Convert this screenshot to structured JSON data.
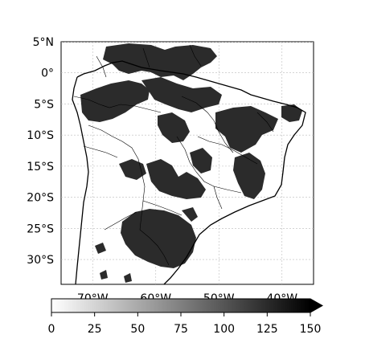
{
  "map": {
    "lat_labels": [
      "5°N",
      "0°",
      "5°S",
      "10°S",
      "15°S",
      "20°S",
      "25°S",
      "30°S"
    ],
    "lon_labels": [
      "70°W",
      "60°W",
      "50°W",
      "40°W"
    ],
    "lat_range": [
      -34,
      5
    ],
    "lon_range": [
      -75,
      -35
    ],
    "gridlines": true
  },
  "colorbar": {
    "ticks": [
      "0",
      "25",
      "50",
      "75",
      "100",
      "125",
      "150"
    ],
    "range": [
      0,
      150
    ],
    "extend": "max",
    "colormap": "white-to-black",
    "color_low": "#ffffff",
    "color_high": "#000000"
  },
  "colors": {
    "fill_dark": "#2b2b2b",
    "coast": "#000000",
    "grid": "#bbbbbb"
  }
}
